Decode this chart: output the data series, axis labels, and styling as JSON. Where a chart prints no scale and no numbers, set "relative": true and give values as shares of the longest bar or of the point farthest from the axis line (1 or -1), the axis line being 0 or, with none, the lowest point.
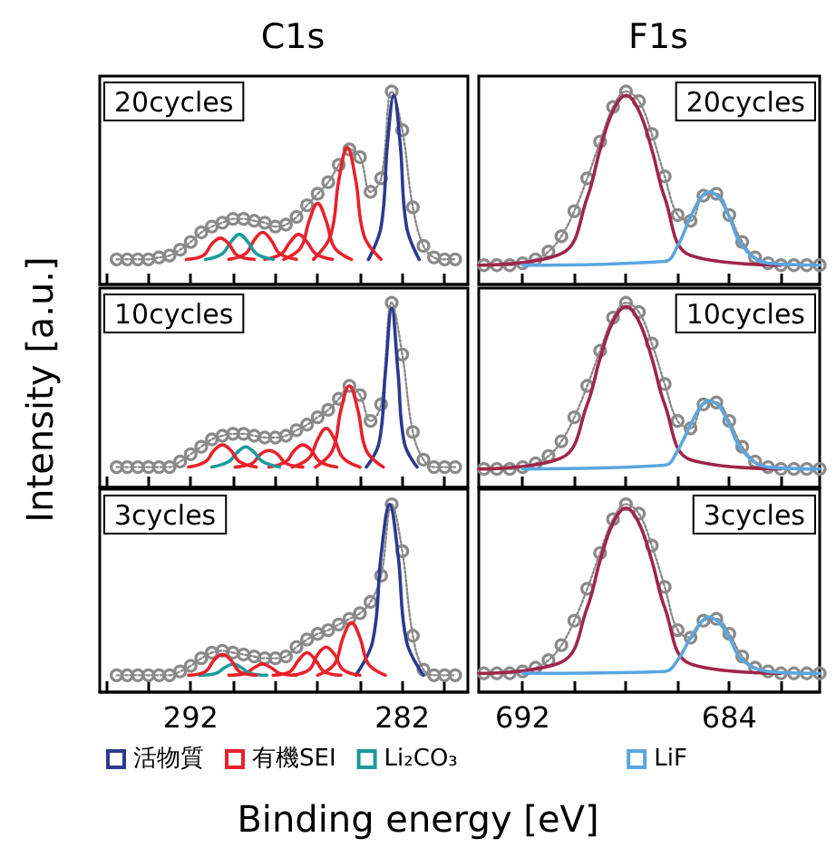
{
  "chart_data": [
    {
      "type": "line",
      "title": "C1s",
      "annotations": [
        "20cycles"
      ],
      "relative": true,
      "xlim": [
        296.3,
        278.9
      ],
      "xticks": [
        {
          "value": 296,
          "label": null
        },
        {
          "value": 294,
          "label": null
        },
        292,
        {
          "value": 290,
          "label": null
        },
        {
          "value": 288,
          "label": null
        },
        {
          "value": 286,
          "label": null
        },
        {
          "value": 284,
          "label": null
        },
        282,
        {
          "value": 280,
          "label": null
        }
      ],
      "tick_labels": false,
      "marker": "none",
      "line_style": "solid",
      "series": [
        {
          "color": "#8a8a8a",
          "marker": "circle",
          "line_style": "dotted",
          "x": [
            295.5,
            295,
            294.5,
            294,
            293.5,
            293,
            292.5,
            292,
            291.5,
            291,
            290.5,
            290,
            289.5,
            289,
            288.5,
            288,
            287.5,
            287,
            286.5,
            286,
            285.5,
            285,
            284.5,
            284,
            283.5,
            283,
            282.5,
            282,
            281.5,
            281,
            280.5,
            280,
            279.5
          ],
          "values": [
            0.13,
            0.13,
            0.13,
            0.13,
            0.14,
            0.15,
            0.18,
            0.22,
            0.27,
            0.3,
            0.32,
            0.34,
            0.34,
            0.33,
            0.32,
            0.3,
            0.31,
            0.35,
            0.41,
            0.47,
            0.53,
            0.62,
            0.7,
            0.66,
            0.48,
            0.55,
            1.0,
            0.8,
            0.4,
            0.2,
            0.14,
            0.13,
            0.13
          ]
        },
        {
          "color": "#2b3a8f",
          "x": [
            283.6,
            283.0,
            282.7,
            282.4,
            282.1,
            281.8,
            281.2
          ],
          "values": [
            0.13,
            0.3,
            0.73,
            0.98,
            0.73,
            0.3,
            0.13
          ]
        },
        {
          "color": "#e8212b",
          "x": [
            286.2,
            285.4,
            285.0,
            284.6,
            284.2,
            283.8,
            283.0
          ],
          "values": [
            0.13,
            0.25,
            0.54,
            0.71,
            0.54,
            0.25,
            0.13
          ]
        },
        {
          "color": "#e8212b",
          "x": [
            287.6,
            286.8,
            286.4,
            286.0,
            285.6,
            285.2,
            284.4
          ],
          "values": [
            0.13,
            0.19,
            0.33,
            0.42,
            0.33,
            0.19,
            0.13
          ]
        },
        {
          "color": "#e8212b",
          "x": [
            288.5,
            287.7,
            287.3,
            286.9,
            286.5,
            286.1,
            285.3
          ],
          "values": [
            0.13,
            0.16,
            0.22,
            0.26,
            0.22,
            0.16,
            0.13
          ]
        },
        {
          "color": "#e8212b",
          "x": [
            290.2,
            289.4,
            289.0,
            288.6,
            288.2,
            287.8,
            287.0
          ],
          "values": [
            0.13,
            0.16,
            0.23,
            0.27,
            0.23,
            0.16,
            0.13
          ]
        },
        {
          "color": "#1a9a9a",
          "x": [
            291.3,
            290.5,
            290.1,
            289.7,
            289.3,
            288.9,
            288.1
          ],
          "values": [
            0.13,
            0.16,
            0.22,
            0.26,
            0.22,
            0.16,
            0.13
          ]
        },
        {
          "color": "#e8212b",
          "x": [
            292.2,
            291.4,
            291.0,
            290.6,
            290.2,
            289.8,
            289.0
          ],
          "values": [
            0.13,
            0.15,
            0.21,
            0.24,
            0.21,
            0.15,
            0.13
          ]
        }
      ]
    },
    {
      "type": "line",
      "title": "F1s",
      "annotations": [
        "20cycles"
      ],
      "relative": true,
      "xlim": [
        693.7,
        680.5
      ],
      "xticks": [
        692,
        {
          "value": 690,
          "label": null
        },
        {
          "value": 688,
          "label": null
        },
        {
          "value": 686,
          "label": null
        },
        684,
        {
          "value": 682,
          "label": null
        }
      ],
      "tick_labels": false,
      "marker": "none",
      "line_style": "solid",
      "series": [
        {
          "color": "#8a8a8a",
          "marker": "circle",
          "line_style": "dotted",
          "x": [
            693.5,
            693,
            692.5,
            692,
            691.5,
            691,
            690.5,
            690,
            689.5,
            689,
            688.5,
            688,
            687.5,
            687,
            686.5,
            686,
            685.5,
            685,
            684.5,
            684,
            683.5,
            683,
            682.5,
            682,
            681.5,
            681,
            680.5
          ],
          "values": [
            0.1,
            0.1,
            0.1,
            0.11,
            0.13,
            0.17,
            0.25,
            0.38,
            0.55,
            0.74,
            0.92,
            1.0,
            0.95,
            0.78,
            0.56,
            0.36,
            0.33,
            0.46,
            0.47,
            0.36,
            0.22,
            0.14,
            0.11,
            0.1,
            0.1,
            0.1,
            0.1
          ]
        },
        {
          "color": "#a0254a",
          "x": [
            693.7,
            690.5,
            689.5,
            689,
            688.5,
            688,
            687.5,
            687,
            686.5,
            685.5,
            682
          ],
          "values": [
            0.1,
            0.16,
            0.45,
            0.7,
            0.9,
            0.98,
            0.9,
            0.7,
            0.45,
            0.15,
            0.1
          ]
        },
        {
          "color": "#5aa6e0",
          "x": [
            692,
            686.5,
            686,
            685.5,
            685.1,
            684.8,
            684.4,
            684,
            683.5,
            682.5,
            680.5
          ],
          "values": [
            0.1,
            0.12,
            0.2,
            0.35,
            0.45,
            0.48,
            0.45,
            0.35,
            0.2,
            0.11,
            0.1
          ]
        }
      ]
    },
    {
      "type": "line",
      "ylabel": "Intensity [a.u.]",
      "annotations": [
        "10cycles"
      ],
      "relative": true,
      "xlim": [
        296.3,
        278.9
      ],
      "xticks": [
        {
          "value": 296,
          "label": null
        },
        {
          "value": 294,
          "label": null
        },
        292,
        {
          "value": 290,
          "label": null
        },
        {
          "value": 288,
          "label": null
        },
        {
          "value": 286,
          "label": null
        },
        {
          "value": 284,
          "label": null
        },
        282,
        {
          "value": 280,
          "label": null
        }
      ],
      "tick_labels": false,
      "marker": "none",
      "line_style": "solid",
      "series": [
        {
          "color": "#8a8a8a",
          "marker": "circle",
          "line_style": "dotted",
          "x": [
            295.5,
            295,
            294.5,
            294,
            293.5,
            293,
            292.5,
            292,
            291.5,
            291,
            290.5,
            290,
            289.5,
            289,
            288.5,
            288,
            287.5,
            287,
            286.5,
            286,
            285.5,
            285,
            284.5,
            284,
            283.5,
            283,
            282.5,
            282,
            281.5,
            281,
            280.5,
            280,
            279.5
          ],
          "values": [
            0.11,
            0.11,
            0.11,
            0.11,
            0.11,
            0.11,
            0.14,
            0.18,
            0.22,
            0.26,
            0.28,
            0.29,
            0.29,
            0.28,
            0.27,
            0.27,
            0.28,
            0.31,
            0.34,
            0.38,
            0.42,
            0.48,
            0.55,
            0.5,
            0.36,
            0.45,
            1.0,
            0.72,
            0.3,
            0.15,
            0.11,
            0.11,
            0.11
          ]
        },
        {
          "color": "#2b3a8f",
          "x": [
            283.7,
            283.1,
            282.8,
            282.5,
            282.2,
            281.9,
            281.3
          ],
          "values": [
            0.11,
            0.24,
            0.62,
            0.97,
            0.62,
            0.24,
            0.11
          ]
        },
        {
          "color": "#e8212b",
          "x": [
            286.1,
            285.3,
            284.9,
            284.5,
            284.1,
            283.7,
            282.9
          ],
          "values": [
            0.11,
            0.2,
            0.42,
            0.55,
            0.42,
            0.2,
            0.11
          ]
        },
        {
          "color": "#e8212b",
          "x": [
            287.2,
            286.4,
            286.0,
            285.6,
            285.2,
            284.8,
            284.0
          ],
          "values": [
            0.11,
            0.16,
            0.26,
            0.32,
            0.26,
            0.16,
            0.11
          ]
        },
        {
          "color": "#e8212b",
          "x": [
            288.3,
            287.5,
            287.1,
            286.7,
            286.3,
            285.9,
            285.1
          ],
          "values": [
            0.11,
            0.14,
            0.2,
            0.23,
            0.2,
            0.14,
            0.11
          ]
        },
        {
          "color": "#e8212b",
          "x": [
            289.9,
            289.1,
            288.7,
            288.3,
            287.9,
            287.5,
            286.7
          ],
          "values": [
            0.11,
            0.13,
            0.18,
            0.2,
            0.18,
            0.13,
            0.11
          ]
        },
        {
          "color": "#1a9a9a",
          "x": [
            291.0,
            290.2,
            289.8,
            289.4,
            289.0,
            288.6,
            287.8
          ],
          "values": [
            0.11,
            0.14,
            0.19,
            0.22,
            0.19,
            0.14,
            0.11
          ]
        },
        {
          "color": "#e8212b",
          "x": [
            292.1,
            291.3,
            290.9,
            290.5,
            290.1,
            289.7,
            288.9
          ],
          "values": [
            0.11,
            0.14,
            0.2,
            0.23,
            0.2,
            0.14,
            0.11
          ]
        }
      ]
    },
    {
      "type": "line",
      "annotations": [
        "10cycles"
      ],
      "relative": true,
      "xlim": [
        693.7,
        680.5
      ],
      "xticks": [
        692,
        {
          "value": 690,
          "label": null
        },
        {
          "value": 688,
          "label": null
        },
        {
          "value": 686,
          "label": null
        },
        684,
        {
          "value": 682,
          "label": null
        }
      ],
      "tick_labels": false,
      "marker": "none",
      "line_style": "solid",
      "series": [
        {
          "color": "#8a8a8a",
          "marker": "circle",
          "line_style": "dotted",
          "x": [
            693.5,
            693,
            692.5,
            692,
            691.5,
            691,
            690.5,
            690,
            689.5,
            689,
            688.5,
            688,
            687.5,
            687,
            686.5,
            686,
            685.5,
            685,
            684.5,
            684,
            683.5,
            683,
            682.5,
            682,
            681.5,
            681,
            680.5
          ],
          "values": [
            0.1,
            0.1,
            0.1,
            0.11,
            0.13,
            0.17,
            0.25,
            0.38,
            0.55,
            0.74,
            0.92,
            1.0,
            0.95,
            0.78,
            0.56,
            0.36,
            0.32,
            0.45,
            0.46,
            0.36,
            0.22,
            0.14,
            0.11,
            0.1,
            0.1,
            0.1,
            0.1
          ]
        },
        {
          "color": "#a0254a",
          "x": [
            693.7,
            690.5,
            689.5,
            689,
            688.5,
            688,
            687.5,
            687,
            686.5,
            685.5,
            682
          ],
          "values": [
            0.1,
            0.16,
            0.45,
            0.7,
            0.9,
            0.98,
            0.9,
            0.7,
            0.45,
            0.15,
            0.1
          ]
        },
        {
          "color": "#5aa6e0",
          "x": [
            692,
            686.5,
            686,
            685.5,
            685.1,
            684.8,
            684.4,
            684,
            683.5,
            682.5,
            680.5
          ],
          "values": [
            0.1,
            0.12,
            0.2,
            0.34,
            0.44,
            0.47,
            0.44,
            0.34,
            0.2,
            0.11,
            0.1
          ]
        }
      ]
    },
    {
      "type": "line",
      "xlabel": "Binding energy [eV]",
      "annotations": [
        "3cycles"
      ],
      "relative": true,
      "xlim": [
        296.3,
        278.9
      ],
      "xticks": [
        {
          "value": 296,
          "label": null
        },
        {
          "value": 294,
          "label": null
        },
        292,
        {
          "value": 290,
          "label": null
        },
        {
          "value": 288,
          "label": null
        },
        {
          "value": 286,
          "label": null
        },
        {
          "value": 284,
          "label": null
        },
        282,
        {
          "value": 280,
          "label": null
        }
      ],
      "tick_labels": "x",
      "legend": "bottom",
      "marker": "none",
      "line_style": "solid",
      "series": [
        {
          "color": "#8a8a8a",
          "marker": "circle",
          "line_style": "dotted",
          "x": [
            295.5,
            295,
            294.5,
            294,
            293.5,
            293,
            292.5,
            292,
            291.5,
            291,
            290.5,
            290,
            289.5,
            289,
            288.5,
            288,
            287.5,
            287,
            286.5,
            286,
            285.5,
            285,
            284.5,
            284,
            283.5,
            283,
            282.5,
            282,
            281.5,
            281,
            280.5,
            280,
            279.5
          ],
          "values": [
            0.09,
            0.09,
            0.09,
            0.09,
            0.09,
            0.09,
            0.11,
            0.14,
            0.18,
            0.21,
            0.22,
            0.21,
            0.2,
            0.19,
            0.18,
            0.18,
            0.19,
            0.24,
            0.28,
            0.31,
            0.33,
            0.36,
            0.39,
            0.42,
            0.48,
            0.62,
            1.0,
            0.75,
            0.3,
            0.12,
            0.09,
            0.09,
            0.09
          ]
        },
        {
          "name": "活物質",
          "color": "#2b3a8f",
          "x": [
            284.2,
            283.4,
            283.0,
            282.6,
            282.2,
            281.8,
            281.0
          ],
          "values": [
            0.09,
            0.27,
            0.73,
            1.0,
            0.73,
            0.27,
            0.09
          ]
        },
        {
          "name": "有機SEI",
          "color": "#e8212b",
          "x": [
            286.0,
            285.2,
            284.8,
            284.4,
            284.0,
            283.6,
            282.8
          ],
          "values": [
            0.09,
            0.15,
            0.29,
            0.37,
            0.29,
            0.15,
            0.09
          ]
        },
        {
          "color": "#e8212b",
          "x": [
            287.2,
            286.4,
            286.0,
            285.6,
            285.2,
            284.8,
            284.0
          ],
          "values": [
            0.09,
            0.12,
            0.2,
            0.24,
            0.2,
            0.12,
            0.09
          ]
        },
        {
          "color": "#e8212b",
          "x": [
            288.1,
            287.3,
            286.9,
            286.5,
            286.1,
            285.7,
            284.9
          ],
          "values": [
            0.09,
            0.11,
            0.17,
            0.21,
            0.17,
            0.11,
            0.09
          ]
        },
        {
          "color": "#e8212b",
          "x": [
            290.2,
            289.4,
            289.0,
            288.6,
            288.2,
            287.8,
            287.0
          ],
          "values": [
            0.09,
            0.1,
            0.13,
            0.15,
            0.13,
            0.1,
            0.09
          ]
        },
        {
          "name": "Li₂CO₃",
          "color": "#1a9a9a",
          "x": [
            291.6,
            290.8,
            290.4,
            290.0,
            289.6,
            289.2,
            288.4
          ],
          "values": [
            0.09,
            0.1,
            0.13,
            0.15,
            0.13,
            0.1,
            0.09
          ]
        },
        {
          "color": "#e8212b",
          "x": [
            292.1,
            291.3,
            290.9,
            290.5,
            290.1,
            289.7,
            288.9
          ],
          "values": [
            0.09,
            0.11,
            0.17,
            0.2,
            0.17,
            0.11,
            0.09
          ]
        }
      ]
    },
    {
      "type": "line",
      "annotations": [
        "3cycles"
      ],
      "relative": true,
      "xlim": [
        693.7,
        680.5
      ],
      "xticks": [
        692,
        {
          "value": 690,
          "label": null
        },
        {
          "value": 688,
          "label": null
        },
        {
          "value": 686,
          "label": null
        },
        684,
        {
          "value": 682,
          "label": null
        }
      ],
      "tick_labels": "x",
      "legend": "bottom",
      "marker": "none",
      "line_style": "solid",
      "series": [
        {
          "color": "#8a8a8a",
          "marker": "circle",
          "line_style": "dotted",
          "x": [
            693.5,
            693,
            692.5,
            692,
            691.5,
            691,
            690.5,
            690,
            689.5,
            689,
            688.5,
            688,
            687.5,
            687,
            686.5,
            686,
            685.5,
            685,
            684.5,
            684,
            683.5,
            683,
            682.5,
            682,
            681.5,
            681,
            680.5
          ],
          "values": [
            0.1,
            0.1,
            0.1,
            0.11,
            0.13,
            0.17,
            0.25,
            0.38,
            0.55,
            0.74,
            0.92,
            1.0,
            0.95,
            0.78,
            0.56,
            0.33,
            0.29,
            0.38,
            0.39,
            0.31,
            0.19,
            0.13,
            0.11,
            0.1,
            0.1,
            0.1,
            0.1
          ]
        },
        {
          "color": "#a0254a",
          "x": [
            693.7,
            690.5,
            689.5,
            689,
            688.5,
            688,
            687.5,
            687,
            686.5,
            685.5,
            682
          ],
          "values": [
            0.1,
            0.16,
            0.45,
            0.7,
            0.9,
            0.98,
            0.9,
            0.7,
            0.45,
            0.15,
            0.1
          ]
        },
        {
          "name": "LiF",
          "color": "#5aa6e0",
          "x": [
            692,
            686.5,
            686,
            685.5,
            685.1,
            684.8,
            684.4,
            684,
            683.5,
            682.5,
            680.5
          ],
          "values": [
            0.1,
            0.11,
            0.17,
            0.29,
            0.37,
            0.4,
            0.37,
            0.29,
            0.17,
            0.11,
            0.1
          ]
        }
      ]
    }
  ]
}
